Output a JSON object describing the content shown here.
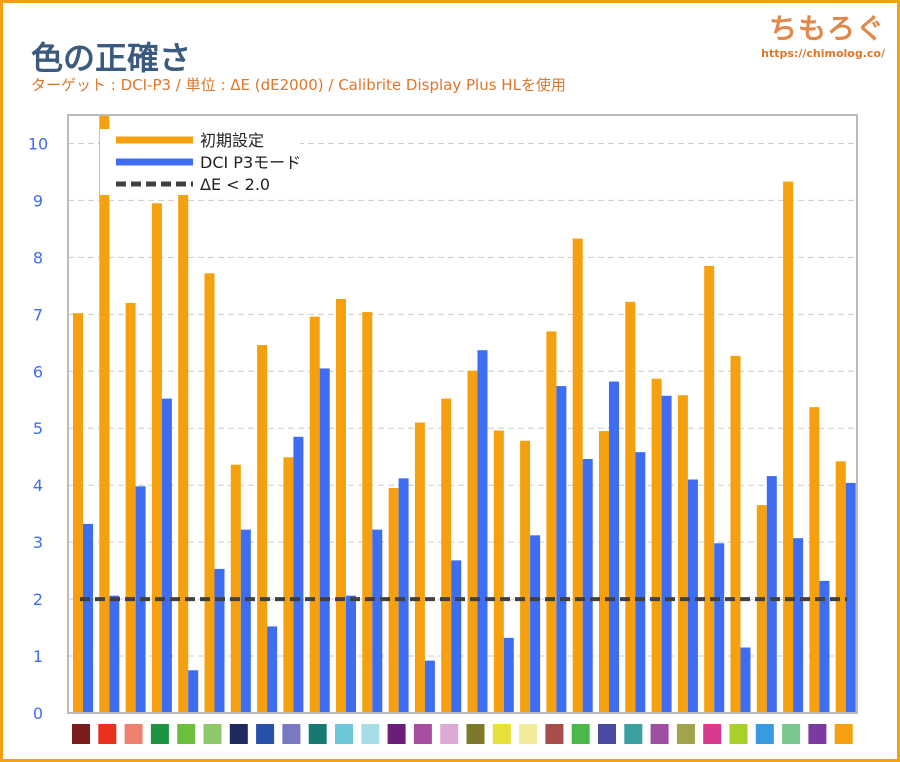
{
  "header": {
    "title": "色の正確さ",
    "subtitle": "ターゲット : DCI-P3 / 単位 : ΔE (dE2000) / Calibrite Display Plus HLを使用",
    "logo": "ちもろぐ",
    "url": "https://chimolog.co/"
  },
  "chart_data": {
    "type": "bar",
    "title": "色の正確さ",
    "ylim": [
      0,
      10.5
    ],
    "yticks": [
      "0",
      "1",
      "2",
      "3",
      "4",
      "5",
      "6",
      "7",
      "8",
      "9",
      "10"
    ],
    "grid": true,
    "legend_position": "top-left",
    "threshold": {
      "name": "ΔE < 2.0",
      "value": 2.0,
      "color": "#404040"
    },
    "categories": [
      "#7b1d1d",
      "#e8321e",
      "#ee8070",
      "#1e9440",
      "#6cbf3c",
      "#8ec86a",
      "#1e2a5e",
      "#2850a8",
      "#7a78c0",
      "#167a70",
      "#6cc8d8",
      "#a8dce6",
      "#6a1e78",
      "#a84ea0",
      "#dcaad4",
      "#7a7a2a",
      "#e8e036",
      "#f0ec9a",
      "#a84e4a",
      "#4cb84a",
      "#4a4aa0",
      "#3aa0a0",
      "#a04ea0",
      "#a0a44a",
      "#d83a8c",
      "#a8d02a",
      "#3a9ae0",
      "#78c890",
      "#7a3aa0",
      "#f5a00e"
    ],
    "series": [
      {
        "name": "初期設定",
        "color": "#f5a00e",
        "values": [
          7.02,
          11,
          7.2,
          8.95,
          9.13,
          7.72,
          4.36,
          6.46,
          4.49,
          6.96,
          7.27,
          7.04,
          3.95,
          5.1,
          5.52,
          6.01,
          4.96,
          4.78,
          6.7,
          8.33,
          4.95,
          7.22,
          5.87,
          5.58,
          7.85,
          6.27,
          3.65,
          9.33,
          5.37,
          4.42
        ]
      },
      {
        "name": "DCI P3モード",
        "color": "#3f6df2",
        "values": [
          3.32,
          2.06,
          3.98,
          5.52,
          0.75,
          2.53,
          3.22,
          1.52,
          4.85,
          6.05,
          2.06,
          3.22,
          4.12,
          0.92,
          2.68,
          6.37,
          1.32,
          3.12,
          5.74,
          4.46,
          5.82,
          4.58,
          5.57,
          4.1,
          2.98,
          1.15,
          4.16,
          3.07,
          2.32,
          4.04
        ]
      }
    ]
  }
}
